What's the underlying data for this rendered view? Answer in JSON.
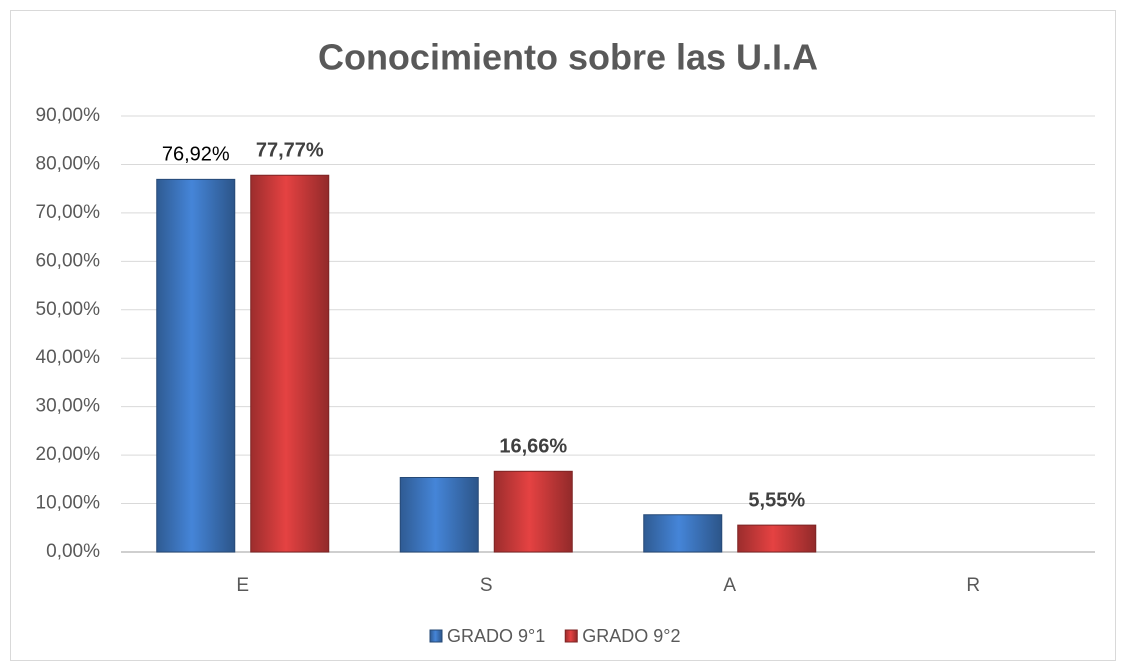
{
  "chart_data": {
    "type": "bar",
    "title": "Conocimiento sobre las U.I.A",
    "categories": [
      "E",
      "S",
      "A",
      "R"
    ],
    "series": [
      {
        "name": "GRADO 9°1",
        "color": "#3f79c4",
        "values": [
          76.92,
          15.38,
          7.69,
          0
        ],
        "value_labels": [
          "76,92%",
          null,
          null,
          null
        ]
      },
      {
        "name": "GRADO 9°2",
        "color": "#d03c3c",
        "values": [
          77.77,
          16.66,
          5.55,
          0
        ],
        "value_labels": [
          "77,77%",
          "16,66%",
          "5,55%",
          null
        ]
      }
    ],
    "ylim": [
      0,
      90
    ],
    "yticks": [
      {
        "value": 0,
        "label": "0,00%"
      },
      {
        "value": 10,
        "label": "10,00%"
      },
      {
        "value": 20,
        "label": "20,00%"
      },
      {
        "value": 30,
        "label": "30,00%"
      },
      {
        "value": 40,
        "label": "40,00%"
      },
      {
        "value": 50,
        "label": "50,00%"
      },
      {
        "value": 60,
        "label": "60,00%"
      },
      {
        "value": 70,
        "label": "70,00%"
      },
      {
        "value": 80,
        "label": "80,00%"
      },
      {
        "value": 90,
        "label": "90,00%"
      }
    ],
    "grid": true,
    "legend": "bottom"
  }
}
